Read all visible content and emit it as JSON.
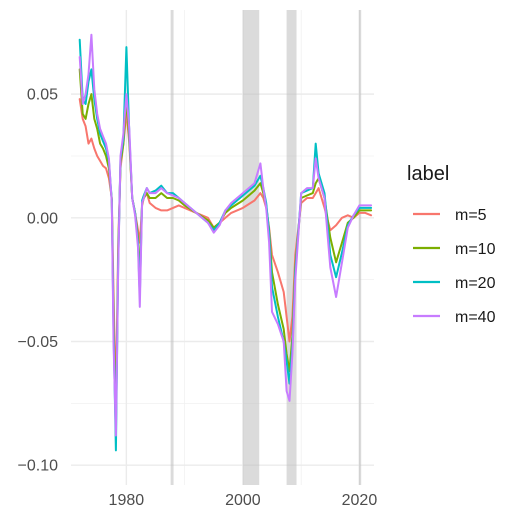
{
  "chart_data": {
    "type": "line",
    "title": "",
    "xlabel": "",
    "ylabel": "",
    "xlim": [
      1970.5,
      2022.5
    ],
    "ylim": [
      -0.108,
      0.084
    ],
    "x_ticks": [
      1980,
      2000,
      2020
    ],
    "x_tick_labels": [
      "1980",
      "2000",
      "2020"
    ],
    "y_ticks": [
      -0.1,
      -0.05,
      0.0,
      0.05
    ],
    "y_tick_labels": [
      "−0.10",
      "−0.05",
      "0.00",
      "0.05"
    ],
    "grid": true,
    "legend": {
      "title": "label",
      "position": "right"
    },
    "shaded_bands": [
      {
        "start": 1987.6,
        "end": 1988.1
      },
      {
        "start": 2000.0,
        "end": 2002.8
      },
      {
        "start": 2007.5,
        "end": 2009.2
      },
      {
        "start": 2019.9,
        "end": 2020.3
      }
    ],
    "series": [
      {
        "name": "m=5",
        "color": "#F8766D",
        "x": [
          1972,
          1972.5,
          1973,
          1973.5,
          1974,
          1974.5,
          1975,
          1975.5,
          1976,
          1976.5,
          1977,
          1977.5,
          1977.8,
          1978.2,
          1978.6,
          1979,
          1979.5,
          1980,
          1980.5,
          1981,
          1981.5,
          1982,
          1982.3,
          1982.7,
          1983,
          1983.5,
          1984,
          1985,
          1986,
          1987,
          1988,
          1989,
          1990,
          1992,
          1994,
          1995,
          1996,
          1997,
          1998,
          2000,
          2002,
          2003,
          2003.5,
          2004,
          2004.5,
          2005,
          2006,
          2007,
          2007.5,
          2008,
          2008.5,
          2009,
          2010,
          2011,
          2012,
          2012.5,
          2013,
          2014,
          2015,
          2016,
          2017,
          2018,
          2019,
          2020,
          2021,
          2022
        ],
        "y": [
          0.048,
          0.04,
          0.037,
          0.03,
          0.032,
          0.028,
          0.025,
          0.023,
          0.021,
          0.02,
          0.016,
          0.008,
          -0.03,
          -0.075,
          -0.01,
          0.02,
          0.03,
          0.043,
          0.03,
          0.008,
          0.002,
          -0.005,
          -0.01,
          0.005,
          0.008,
          0.01,
          0.006,
          0.004,
          0.003,
          0.003,
          0.004,
          0.005,
          0.004,
          0.002,
          0.0,
          -0.004,
          -0.002,
          0.0,
          0.002,
          0.004,
          0.007,
          0.01,
          0.008,
          0.004,
          -0.004,
          -0.015,
          -0.022,
          -0.03,
          -0.04,
          -0.05,
          -0.04,
          -0.015,
          0.006,
          0.008,
          0.008,
          0.01,
          0.012,
          0.004,
          -0.005,
          -0.003,
          0.0,
          0.001,
          0.0,
          0.002,
          0.002,
          0.001
        ]
      },
      {
        "name": "m=10",
        "color": "#7CAE00",
        "x": [
          1972,
          1972.5,
          1973,
          1973.5,
          1974,
          1974.5,
          1975,
          1975.5,
          1976,
          1976.5,
          1977,
          1977.5,
          1977.8,
          1978.2,
          1978.6,
          1979,
          1979.5,
          1980,
          1980.5,
          1981,
          1981.5,
          1982,
          1982.3,
          1982.7,
          1983,
          1983.5,
          1984,
          1985,
          1986,
          1987,
          1988,
          1989,
          1990,
          1992,
          1994,
          1995,
          1996,
          1997,
          1998,
          2000,
          2002,
          2003,
          2003.5,
          2004,
          2004.5,
          2005,
          2006,
          2007,
          2007.5,
          2008,
          2008.5,
          2009,
          2010,
          2011,
          2012,
          2012.5,
          2013,
          2014,
          2015,
          2016,
          2017,
          2018,
          2019,
          2020,
          2021,
          2022
        ],
        "y": [
          0.06,
          0.042,
          0.04,
          0.046,
          0.05,
          0.04,
          0.036,
          0.03,
          0.028,
          0.025,
          0.02,
          0.007,
          -0.04,
          -0.084,
          -0.015,
          0.022,
          0.03,
          0.048,
          0.032,
          0.008,
          0.002,
          -0.008,
          -0.025,
          0.006,
          0.008,
          0.01,
          0.008,
          0.008,
          0.01,
          0.008,
          0.008,
          0.007,
          0.005,
          0.002,
          -0.001,
          -0.004,
          -0.002,
          0.002,
          0.004,
          0.007,
          0.011,
          0.014,
          0.01,
          0.005,
          -0.005,
          -0.022,
          -0.035,
          -0.045,
          -0.055,
          -0.062,
          -0.048,
          -0.02,
          0.008,
          0.009,
          0.01,
          0.014,
          0.016,
          0.008,
          -0.008,
          -0.018,
          -0.01,
          -0.002,
          0.0,
          0.003,
          0.003,
          0.003
        ]
      },
      {
        "name": "m=20",
        "color": "#00BFC4",
        "x": [
          1972,
          1972.5,
          1973,
          1973.5,
          1974,
          1974.5,
          1975,
          1975.5,
          1976,
          1976.5,
          1977,
          1977.5,
          1977.8,
          1978.2,
          1978.6,
          1979,
          1979.5,
          1980,
          1980.5,
          1981,
          1981.5,
          1982,
          1982.3,
          1982.7,
          1983,
          1983.5,
          1984,
          1985,
          1986,
          1987,
          1988,
          1989,
          1990,
          1992,
          1994,
          1995,
          1996,
          1997,
          1998,
          2000,
          2002,
          2003,
          2003.5,
          2004,
          2004.5,
          2005,
          2006,
          2007,
          2007.5,
          2008,
          2008.5,
          2009,
          2010,
          2011,
          2012,
          2012.5,
          2013,
          2014,
          2015,
          2016,
          2017,
          2018,
          2019,
          2020,
          2021,
          2022
        ],
        "y": [
          0.072,
          0.048,
          0.046,
          0.055,
          0.06,
          0.048,
          0.04,
          0.034,
          0.031,
          0.028,
          0.023,
          0.007,
          -0.045,
          -0.094,
          -0.018,
          0.024,
          0.032,
          0.069,
          0.034,
          0.008,
          0.002,
          -0.01,
          -0.032,
          0.007,
          0.009,
          0.012,
          0.01,
          0.011,
          0.013,
          0.01,
          0.01,
          0.008,
          0.006,
          0.002,
          -0.002,
          -0.005,
          -0.002,
          0.003,
          0.005,
          0.009,
          0.013,
          0.017,
          0.012,
          0.006,
          -0.006,
          -0.028,
          -0.04,
          -0.05,
          -0.058,
          -0.067,
          -0.052,
          -0.022,
          0.01,
          0.011,
          0.012,
          0.03,
          0.018,
          0.01,
          -0.015,
          -0.024,
          -0.014,
          -0.003,
          0.001,
          0.004,
          0.004,
          0.004
        ]
      },
      {
        "name": "m=40",
        "color": "#C77CFF",
        "x": [
          1972,
          1972.5,
          1973,
          1973.5,
          1974,
          1974.5,
          1975,
          1975.5,
          1976,
          1976.5,
          1977,
          1977.5,
          1977.8,
          1978.2,
          1978.6,
          1979,
          1979.5,
          1980,
          1980.5,
          1981,
          1981.5,
          1982,
          1982.3,
          1982.7,
          1983,
          1983.5,
          1984,
          1985,
          1986,
          1987,
          1988,
          1989,
          1990,
          1992,
          1994,
          1995,
          1996,
          1997,
          1998,
          2000,
          2002,
          2003,
          2003.5,
          2004,
          2004.5,
          2005,
          2006,
          2007,
          2007.5,
          2008,
          2008.5,
          2009,
          2010,
          2011,
          2012,
          2012.5,
          2013,
          2014,
          2015,
          2016,
          2017,
          2018,
          2019,
          2020,
          2021,
          2022
        ],
        "y": [
          0.065,
          0.046,
          0.05,
          0.058,
          0.074,
          0.052,
          0.042,
          0.036,
          0.033,
          0.03,
          0.024,
          0.006,
          -0.05,
          -0.088,
          -0.02,
          0.025,
          0.034,
          0.05,
          0.036,
          0.008,
          0.001,
          -0.012,
          -0.036,
          0.006,
          0.008,
          0.012,
          0.01,
          0.01,
          0.012,
          0.01,
          0.009,
          0.008,
          0.006,
          0.002,
          -0.002,
          -0.006,
          -0.003,
          0.003,
          0.006,
          0.01,
          0.014,
          0.022,
          0.012,
          0.004,
          -0.01,
          -0.038,
          -0.043,
          -0.05,
          -0.07,
          -0.074,
          -0.055,
          -0.025,
          0.01,
          0.012,
          0.012,
          0.024,
          0.016,
          0.008,
          -0.02,
          -0.032,
          -0.018,
          -0.004,
          0.001,
          0.005,
          0.005,
          0.005
        ]
      }
    ]
  }
}
